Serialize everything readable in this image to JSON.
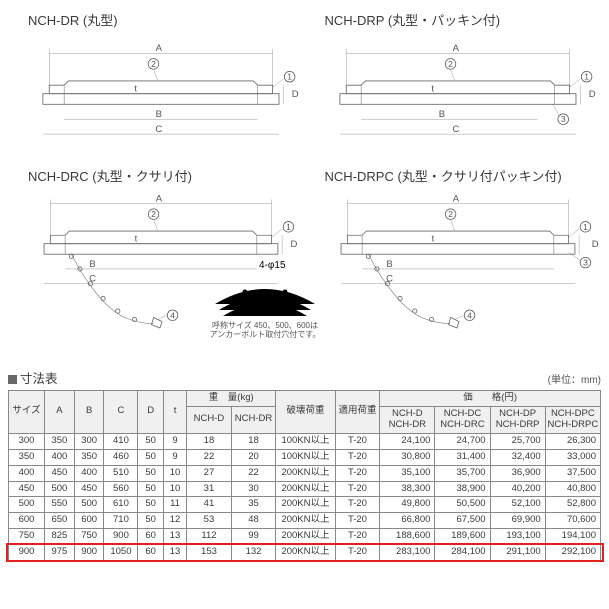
{
  "diagrams": [
    {
      "key": "dr",
      "title": "NCH-DR (丸型)"
    },
    {
      "key": "drp",
      "title": "NCH-DRP (丸型・パッキン付)"
    },
    {
      "key": "drc",
      "title": "NCH-DRC (丸型・クサリ付)"
    },
    {
      "key": "drpc",
      "title": "NCH-DRPC (丸型・クサリ付パッキン付)"
    }
  ],
  "arc_note": {
    "dim_label": "4-φ15",
    "text1": "呼称サイズ 450、500、600は",
    "text2": "アンカーボルト取付穴付です。"
  },
  "table": {
    "title": "寸法表",
    "unit_label": "(単位：mm)",
    "headers": {
      "size": "サイズ",
      "A": "A",
      "B": "B",
      "C": "C",
      "D": "D",
      "t": "t",
      "weight_group": "重　量(kg)",
      "weight_cols": [
        "NCH-D",
        "NCH-DR"
      ],
      "break_load": "破壊荷重",
      "applied_load": "適用荷重",
      "price_group": "価　　格(円)",
      "price_cols": [
        "NCH-D\nNCH-DR",
        "NCH-DC\nNCH-DRC",
        "NCH-DP\nNCH-DRP",
        "NCH-DPC\nNCH-DRPC"
      ]
    },
    "col_widths": {
      "size": 34,
      "A": 28,
      "B": 28,
      "C": 32,
      "D": 24,
      "t": 22,
      "w1": 42,
      "w2": 42,
      "break": 56,
      "applied": 42,
      "p": 52
    },
    "rows": [
      {
        "size": "300",
        "A": "350",
        "B": "300",
        "C": "410",
        "D": "50",
        "t": "9",
        "w1": "18",
        "w2": "18",
        "break": "100KN以上",
        "applied": "T-20",
        "p": [
          "24,100",
          "24,700",
          "25,700",
          "26,300"
        ]
      },
      {
        "size": "350",
        "A": "400",
        "B": "350",
        "C": "460",
        "D": "50",
        "t": "9",
        "w1": "22",
        "w2": "20",
        "break": "100KN以上",
        "applied": "T-20",
        "p": [
          "30,800",
          "31,400",
          "32,400",
          "33,000"
        ]
      },
      {
        "size": "400",
        "A": "450",
        "B": "400",
        "C": "510",
        "D": "50",
        "t": "10",
        "w1": "27",
        "w2": "22",
        "break": "200KN以上",
        "applied": "T-20",
        "p": [
          "35,100",
          "35,700",
          "36,900",
          "37,500"
        ]
      },
      {
        "size": "450",
        "A": "500",
        "B": "450",
        "C": "560",
        "D": "50",
        "t": "10",
        "w1": "31",
        "w2": "30",
        "break": "200KN以上",
        "applied": "T-20",
        "p": [
          "38,300",
          "38,900",
          "40,200",
          "40,800"
        ]
      },
      {
        "size": "500",
        "A": "550",
        "B": "500",
        "C": "610",
        "D": "50",
        "t": "11",
        "w1": "41",
        "w2": "35",
        "break": "200KN以上",
        "applied": "T-20",
        "p": [
          "49,800",
          "50,500",
          "52,100",
          "52,800"
        ]
      },
      {
        "size": "600",
        "A": "650",
        "B": "600",
        "C": "710",
        "D": "50",
        "t": "12",
        "w1": "53",
        "w2": "48",
        "break": "200KN以上",
        "applied": "T-20",
        "p": [
          "66,800",
          "67,500",
          "69,900",
          "70,600"
        ]
      },
      {
        "size": "750",
        "A": "825",
        "B": "750",
        "C": "900",
        "D": "60",
        "t": "13",
        "w1": "112",
        "w2": "99",
        "break": "200KN以上",
        "applied": "T-20",
        "p": [
          "188,600",
          "189,600",
          "193,100",
          "194,100"
        ]
      },
      {
        "size": "900",
        "A": "975",
        "B": "900",
        "C": "1050",
        "D": "60",
        "t": "13",
        "w1": "153",
        "w2": "132",
        "break": "200KN以上",
        "applied": "T-20",
        "p": [
          "283,100",
          "284,100",
          "291,100",
          "292,100"
        ]
      }
    ],
    "highlight_row_index": 7,
    "colors": {
      "border": "#888888",
      "header_bg": "#f0f0f0",
      "text": "#3a3a3a",
      "highlight": "#e22020"
    }
  }
}
